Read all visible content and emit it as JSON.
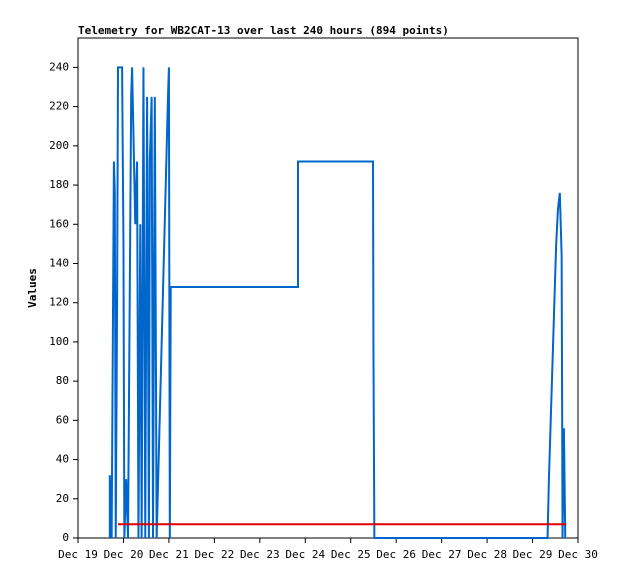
{
  "chart_data": {
    "type": "line",
    "title": "Telemetry for WB2CAT-13 over last 240 hours (894 points)",
    "y_label": "Values",
    "xlim": [
      0,
      11
    ],
    "xticks": [
      {
        "value": 0,
        "label": "Dec 19"
      },
      {
        "value": 1,
        "label": "Dec 20"
      },
      {
        "value": 2,
        "label": "Dec 21"
      },
      {
        "value": 3,
        "label": "Dec 22"
      },
      {
        "value": 4,
        "label": "Dec 23"
      },
      {
        "value": 5,
        "label": "Dec 24"
      },
      {
        "value": 6,
        "label": "Dec 25"
      },
      {
        "value": 7,
        "label": "Dec 26"
      },
      {
        "value": 8,
        "label": "Dec 27"
      },
      {
        "value": 9,
        "label": "Dec 28"
      },
      {
        "value": 10,
        "label": "Dec 29"
      },
      {
        "value": 11,
        "label": "Dec 30"
      }
    ],
    "ylim": [
      0,
      255
    ],
    "yticks": [
      0,
      20,
      40,
      60,
      80,
      100,
      120,
      140,
      160,
      180,
      200,
      220,
      240
    ],
    "series": [
      {
        "color": "#0066cc",
        "x": [
          0.7,
          0.7,
          0.74,
          0.79,
          0.81,
          0.83,
          0.86,
          0.88,
          0.97,
          1.0,
          1.02,
          1.06,
          1.1,
          1.17,
          1.19,
          1.26,
          1.3,
          1.33,
          1.37,
          1.4,
          1.44,
          1.48,
          1.52,
          1.56,
          1.58,
          1.62,
          1.65,
          1.69,
          1.73,
          1.98,
          2.0,
          2.02,
          2.04,
          4.84,
          4.84,
          6.49,
          6.5,
          6.52,
          10.33,
          10.36,
          10.4,
          10.44,
          10.48,
          10.52,
          10.56,
          10.6,
          10.64,
          10.66,
          10.69,
          10.72
        ],
        "values": [
          0,
          32,
          0,
          192,
          176,
          0,
          120,
          240,
          240,
          150,
          0,
          30,
          0,
          225,
          240,
          160,
          192,
          0,
          160,
          0,
          240,
          0,
          225,
          0,
          192,
          225,
          0,
          225,
          0,
          225,
          240,
          0,
          128,
          128,
          192,
          192,
          96,
          0,
          0,
          30,
          60,
          90,
          120,
          150,
          168,
          176,
          144,
          0,
          56,
          0
        ]
      },
      {
        "color": "#dd0000",
        "x": [
          0.88,
          10.74
        ],
        "values": [
          7,
          7
        ]
      }
    ]
  }
}
